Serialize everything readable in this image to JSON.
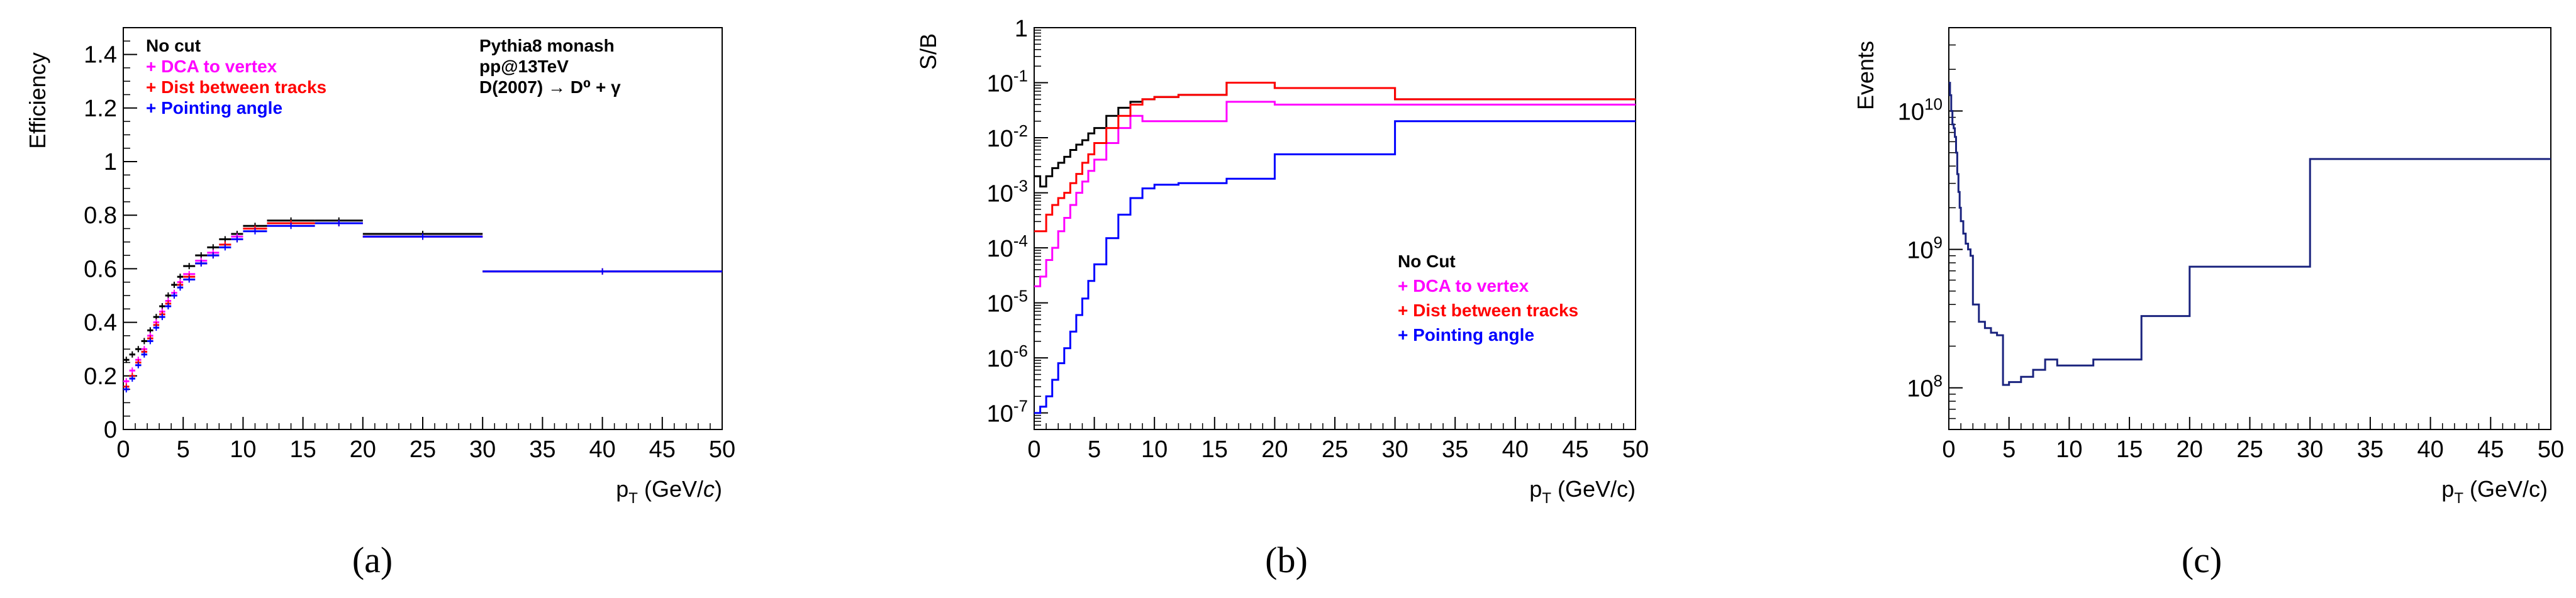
{
  "chart_data": [
    {
      "type": "line",
      "title": "",
      "panel_label": "(a)",
      "xlabel": "p_T (GeV/c)",
      "ylabel": "Efficiency",
      "xlim": [
        0,
        50
      ],
      "ylim": [
        0,
        1.5
      ],
      "x_ticks": [
        0,
        5,
        10,
        15,
        20,
        25,
        30,
        35,
        40,
        45,
        50
      ],
      "y_ticks": [
        0,
        0.2,
        0.4,
        0.6,
        0.8,
        1,
        1.2,
        1.4
      ],
      "y_tick_labels": [
        "0",
        "0.2",
        "0.4",
        "0.6",
        "0.8",
        "1",
        "1.2",
        "1.4"
      ],
      "bin_edges": [
        0,
        0.5,
        1,
        1.5,
        2,
        2.5,
        3,
        3.5,
        4,
        4.5,
        5,
        6,
        7,
        8,
        9,
        10,
        12,
        16,
        20,
        30,
        50
      ],
      "series": [
        {
          "name": "No cut",
          "color": "#000000",
          "values": [
            0.26,
            0.28,
            0.3,
            0.33,
            0.37,
            0.42,
            0.46,
            0.5,
            0.54,
            0.57,
            0.61,
            0.65,
            0.68,
            0.71,
            0.73,
            0.76,
            0.78,
            0.78,
            0.73,
            0.59
          ]
        },
        {
          "name": "+ DCA to vertex",
          "color": "#ff00ff",
          "values": [
            0.18,
            0.22,
            0.26,
            0.3,
            0.35,
            0.4,
            0.44,
            0.48,
            0.51,
            0.55,
            0.58,
            0.63,
            0.66,
            0.69,
            0.72,
            0.75,
            0.77,
            0.77,
            0.72,
            0.59
          ]
        },
        {
          "name": "+ Dist between tracks",
          "color": "#ff0000",
          "values": [
            0.16,
            0.2,
            0.25,
            0.29,
            0.34,
            0.39,
            0.43,
            0.47,
            0.5,
            0.54,
            0.57,
            0.62,
            0.65,
            0.69,
            0.71,
            0.75,
            0.77,
            0.77,
            0.72,
            0.59
          ]
        },
        {
          "name": "+ Pointing angle",
          "color": "#0000ff",
          "values": [
            0.15,
            0.19,
            0.24,
            0.28,
            0.33,
            0.38,
            0.42,
            0.46,
            0.5,
            0.53,
            0.56,
            0.62,
            0.65,
            0.68,
            0.71,
            0.74,
            0.76,
            0.77,
            0.72,
            0.59
          ]
        }
      ],
      "legend": {
        "position": "top-left",
        "entries": [
          "No cut",
          "+ DCA to vertex",
          "+ Dist between tracks",
          "+ Pointing angle"
        ]
      },
      "annotations": [
        "Pythia8 monash",
        "pp@13TeV",
        "D(2007) → D⁰ + γ"
      ],
      "grid": false
    },
    {
      "type": "line",
      "title": "",
      "panel_label": "(b)",
      "xlabel": "p_T (GeV/c)",
      "ylabel": "S/B",
      "yscale": "log",
      "xlim": [
        0,
        50
      ],
      "ylim": [
        5e-08,
        1
      ],
      "x_ticks": [
        0,
        5,
        10,
        15,
        20,
        25,
        30,
        35,
        40,
        45,
        50
      ],
      "y_ticks": [
        1e-07,
        1e-06,
        1e-05,
        0.0001,
        0.001,
        0.01,
        0.1,
        1
      ],
      "y_tick_labels": [
        "10^-7",
        "10^-6",
        "10^-5",
        "10^-4",
        "10^-3",
        "10^-2",
        "10^-1",
        "1"
      ],
      "bin_edges": [
        0,
        0.5,
        1,
        1.5,
        2,
        2.5,
        3,
        3.5,
        4,
        4.5,
        5,
        6,
        7,
        8,
        9,
        10,
        12,
        16,
        20,
        30,
        50
      ],
      "series": [
        {
          "name": "No Cut",
          "color": "#000000",
          "values": [
            0.002,
            0.0013,
            0.002,
            0.0028,
            0.0035,
            0.0045,
            0.006,
            0.0075,
            0.009,
            0.012,
            0.015,
            0.025,
            0.035,
            0.045,
            0.05,
            0.055,
            0.06,
            0.1,
            0.08,
            0.05
          ]
        },
        {
          "name": "+ DCA to vertex",
          "color": "#ff00ff",
          "values": [
            2e-05,
            3e-05,
            6e-05,
            0.0001,
            0.0002,
            0.00035,
            0.0006,
            0.001,
            0.0016,
            0.0025,
            0.004,
            0.008,
            0.015,
            0.025,
            0.02,
            0.02,
            0.02,
            0.045,
            0.04,
            0.04
          ]
        },
        {
          "name": "+ Dist between tracks",
          "color": "#ff0000",
          "values": [
            0.0002,
            0.0002,
            0.0004,
            0.0006,
            0.0008,
            0.001,
            0.0015,
            0.0022,
            0.0035,
            0.005,
            0.008,
            0.015,
            0.025,
            0.04,
            0.05,
            0.055,
            0.06,
            0.1,
            0.08,
            0.05
          ]
        },
        {
          "name": "+ Pointing angle",
          "color": "#0000ff",
          "values": [
            1e-07,
            1.3e-07,
            2e-07,
            4e-07,
            8e-07,
            1.5e-06,
            3e-06,
            6e-06,
            1.2e-05,
            2.5e-05,
            5e-05,
            0.00015,
            0.0004,
            0.0008,
            0.0012,
            0.0014,
            0.0015,
            0.0018,
            0.005,
            0.02
          ]
        }
      ],
      "legend": {
        "position": "center-right",
        "entries": [
          "No Cut",
          "+ DCA to vertex",
          "+ Dist between tracks",
          "+ Pointing angle"
        ]
      },
      "grid": false
    },
    {
      "type": "line",
      "title": "",
      "panel_label": "(c)",
      "xlabel": "p_T (GeV/c)",
      "ylabel": "Events",
      "yscale": "log",
      "xlim": [
        0,
        50
      ],
      "ylim": [
        50000000.0,
        40000000000.0
      ],
      "x_ticks": [
        0,
        5,
        10,
        15,
        20,
        25,
        30,
        35,
        40,
        45,
        50
      ],
      "y_ticks": [
        100000000.0,
        1000000000.0,
        10000000000.0
      ],
      "y_tick_labels": [
        "10^8",
        "10^9",
        "10^10"
      ],
      "bin_edges": [
        0,
        0.1,
        0.2,
        0.3,
        0.4,
        0.5,
        0.6,
        0.7,
        0.8,
        0.9,
        1,
        1.2,
        1.4,
        1.6,
        1.8,
        2,
        2.5,
        3,
        3.5,
        4,
        4.5,
        5,
        6,
        7,
        8,
        9,
        10,
        12,
        16,
        20,
        30,
        50
      ],
      "series": [
        {
          "name": "Events",
          "color": "#1a237e",
          "values": [
            16000000000.0,
            13000000000.0,
            10000000000.0,
            8000000000.0,
            7500000000.0,
            6500000000.0,
            5000000000.0,
            3500000000.0,
            2600000000.0,
            2000000000.0,
            1600000000.0,
            1300000000.0,
            1100000000.0,
            1000000000.0,
            900000000.0,
            400000000.0,
            300000000.0,
            270000000.0,
            250000000.0,
            240000000.0,
            105000000.0,
            110000000.0,
            120000000.0,
            135000000.0,
            160000000.0,
            145000000.0,
            145000000.0,
            160000000.0,
            330000000.0,
            750000000.0,
            4500000000.0
          ]
        }
      ],
      "grid": false
    }
  ]
}
